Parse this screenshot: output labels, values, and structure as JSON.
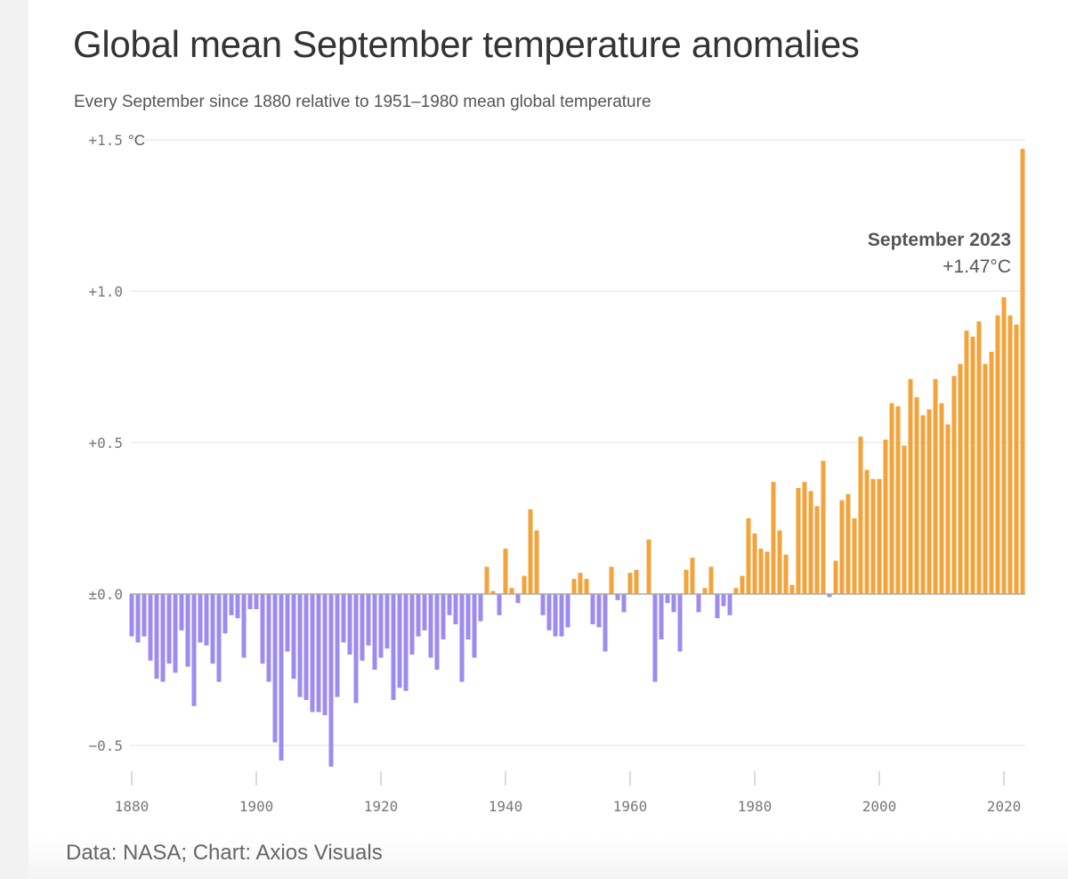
{
  "header": {
    "title": "Global mean September temperature anomalies",
    "subtitle": "Every September since 1880 relative to 1951–1980 mean global temperature"
  },
  "footer": {
    "source": "Data: NASA; Chart: Axios Visuals"
  },
  "colors": {
    "positive": "#F2A33A",
    "negative": "#9D8BEE",
    "grid": "#e3e3e3",
    "zero_line": "#aaaaaa"
  },
  "chart_data": {
    "type": "bar",
    "title": "Global mean September temperature anomalies",
    "subtitle": "Every September since 1880 relative to 1951–1980 mean global temperature",
    "xlabel": "",
    "ylabel": "",
    "y_unit": "°C",
    "ylim": [
      -0.6,
      1.5
    ],
    "xlim": [
      1880,
      2023
    ],
    "grid": true,
    "y_ticks": [
      {
        "value": -0.5,
        "label": "−0.5"
      },
      {
        "value": 0.0,
        "label": "±0.0"
      },
      {
        "value": 0.5,
        "label": "+0.5"
      },
      {
        "value": 1.0,
        "label": "+1.0"
      },
      {
        "value": 1.5,
        "label": "+1.5"
      }
    ],
    "x_ticks": [
      {
        "value": 1880,
        "label": "1880"
      },
      {
        "value": 1900,
        "label": "1900"
      },
      {
        "value": 1920,
        "label": "1920"
      },
      {
        "value": 1940,
        "label": "1940"
      },
      {
        "value": 1960,
        "label": "1960"
      },
      {
        "value": 1980,
        "label": "1980"
      },
      {
        "value": 2000,
        "label": "2000"
      },
      {
        "value": 2020,
        "label": "2020"
      }
    ],
    "categories": [
      1880,
      1881,
      1882,
      1883,
      1884,
      1885,
      1886,
      1887,
      1888,
      1889,
      1890,
      1891,
      1892,
      1893,
      1894,
      1895,
      1896,
      1897,
      1898,
      1899,
      1900,
      1901,
      1902,
      1903,
      1904,
      1905,
      1906,
      1907,
      1908,
      1909,
      1910,
      1911,
      1912,
      1913,
      1914,
      1915,
      1916,
      1917,
      1918,
      1919,
      1920,
      1921,
      1922,
      1923,
      1924,
      1925,
      1926,
      1927,
      1928,
      1929,
      1930,
      1931,
      1932,
      1933,
      1934,
      1935,
      1936,
      1937,
      1938,
      1939,
      1940,
      1941,
      1942,
      1943,
      1944,
      1945,
      1946,
      1947,
      1948,
      1949,
      1950,
      1951,
      1952,
      1953,
      1954,
      1955,
      1956,
      1957,
      1958,
      1959,
      1960,
      1961,
      1962,
      1963,
      1964,
      1965,
      1966,
      1967,
      1968,
      1969,
      1970,
      1971,
      1972,
      1973,
      1974,
      1975,
      1976,
      1977,
      1978,
      1979,
      1980,
      1981,
      1982,
      1983,
      1984,
      1985,
      1986,
      1987,
      1988,
      1989,
      1990,
      1991,
      1992,
      1993,
      1994,
      1995,
      1996,
      1997,
      1998,
      1999,
      2000,
      2001,
      2002,
      2003,
      2004,
      2005,
      2006,
      2007,
      2008,
      2009,
      2010,
      2011,
      2012,
      2013,
      2014,
      2015,
      2016,
      2017,
      2018,
      2019,
      2020,
      2021,
      2022,
      2023
    ],
    "values": [
      -0.14,
      -0.16,
      -0.14,
      -0.22,
      -0.28,
      -0.29,
      -0.23,
      -0.26,
      -0.12,
      -0.24,
      -0.37,
      -0.16,
      -0.17,
      -0.23,
      -0.29,
      -0.13,
      -0.07,
      -0.08,
      -0.21,
      -0.05,
      -0.05,
      -0.23,
      -0.29,
      -0.49,
      -0.55,
      -0.19,
      -0.28,
      -0.34,
      -0.35,
      -0.39,
      -0.39,
      -0.4,
      -0.57,
      -0.34,
      -0.16,
      -0.2,
      -0.36,
      -0.22,
      -0.17,
      -0.25,
      -0.21,
      -0.18,
      -0.35,
      -0.31,
      -0.32,
      -0.2,
      -0.14,
      -0.12,
      -0.21,
      -0.25,
      -0.15,
      -0.07,
      -0.1,
      -0.29,
      -0.15,
      -0.21,
      -0.09,
      0.09,
      0.01,
      -0.07,
      0.15,
      0.02,
      -0.03,
      0.06,
      0.28,
      0.21,
      -0.07,
      -0.12,
      -0.14,
      -0.14,
      -0.11,
      0.05,
      0.07,
      0.05,
      -0.1,
      -0.11,
      -0.19,
      0.09,
      -0.02,
      -0.06,
      0.07,
      0.08,
      0.0,
      0.18,
      -0.29,
      -0.15,
      -0.03,
      -0.06,
      -0.19,
      0.08,
      0.12,
      -0.06,
      0.02,
      0.09,
      -0.08,
      -0.04,
      -0.07,
      0.02,
      0.06,
      0.25,
      0.2,
      0.15,
      0.14,
      0.37,
      0.21,
      0.13,
      0.03,
      0.35,
      0.37,
      0.34,
      0.29,
      0.44,
      -0.01,
      0.11,
      0.31,
      0.33,
      0.25,
      0.52,
      0.41,
      0.38,
      0.38,
      0.51,
      0.63,
      0.62,
      0.49,
      0.71,
      0.65,
      0.59,
      0.61,
      0.71,
      0.63,
      0.56,
      0.72,
      0.76,
      0.87,
      0.85,
      0.9,
      0.76,
      0.8,
      0.92,
      0.98,
      0.92,
      0.89,
      1.47
    ],
    "annotation": {
      "label": "September 2023",
      "value_label": "+1.47°C",
      "x": 2023,
      "y": 1.47
    }
  }
}
